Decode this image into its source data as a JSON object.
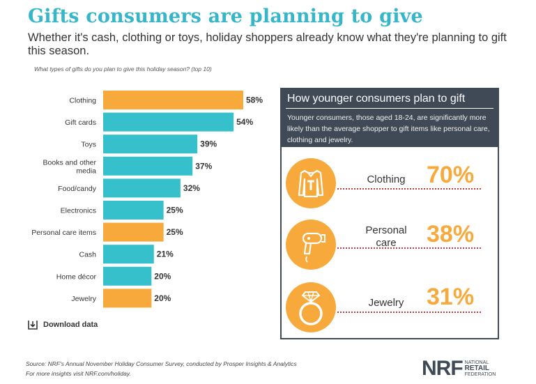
{
  "header": {
    "title": "Gifts consumers are planning to give",
    "subtitle": "Whether it's cash, clothing or toys, holiday shoppers already know what they're planning to gift this season.",
    "question": "What types of gifts do you plan to give this holiday season? (top 10)"
  },
  "chart_data": {
    "type": "bar",
    "orientation": "horizontal",
    "categories": [
      "Clothing",
      "Gift cards",
      "Toys",
      "Books and other media",
      "Food/candy",
      "Electronics",
      "Personal care items",
      "Cash",
      "Home décor",
      "Jewelry"
    ],
    "values": [
      58,
      54,
      39,
      37,
      32,
      25,
      25,
      21,
      20,
      20
    ],
    "labels": [
      "58%",
      "54%",
      "39%",
      "37%",
      "32%",
      "25%",
      "25%",
      "21%",
      "20%",
      "20%"
    ],
    "highlighted": [
      "Clothing",
      "Personal care items",
      "Jewelry"
    ],
    "colors": {
      "default": "#36c0cc",
      "highlight": "#f7a93b"
    },
    "xlim": [
      0,
      58
    ]
  },
  "download": {
    "label": "Download data"
  },
  "panel": {
    "title": "How younger consumers plan to gift",
    "description": "Younger consumers, those aged 18-24, are significantly more likely than the average shopper to gift items like personal care, clothing and jewelry.",
    "stats": [
      {
        "label": "Clothing",
        "value": "70%",
        "icon": "sweater-icon"
      },
      {
        "label": "Personal care",
        "value": "38%",
        "icon": "hair-dryer-icon"
      },
      {
        "label": "Jewelry",
        "value": "31%",
        "icon": "ring-icon"
      }
    ]
  },
  "footer": {
    "source": "Source: NRF's Annual November Holiday Consumer Survey, conducted by Prosper Insights & Analytics",
    "more": "For more insights visit NRF.com/holiday.",
    "logo_mark": "NRF",
    "logo_line1": "NATIONAL",
    "logo_line2": "RETAIL",
    "logo_line3": "FEDERATION"
  }
}
